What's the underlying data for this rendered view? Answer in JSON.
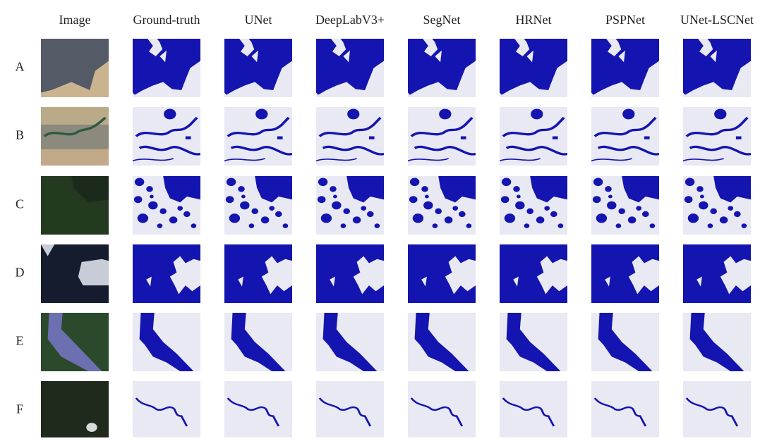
{
  "columns": [
    "Image",
    "Ground-truth",
    "UNet",
    "DeepLabV3+",
    "SegNet",
    "HRNet",
    "PSPNet",
    "UNet-LSCNet"
  ],
  "rows": [
    "A",
    "B",
    "C",
    "D",
    "E",
    "F"
  ]
}
